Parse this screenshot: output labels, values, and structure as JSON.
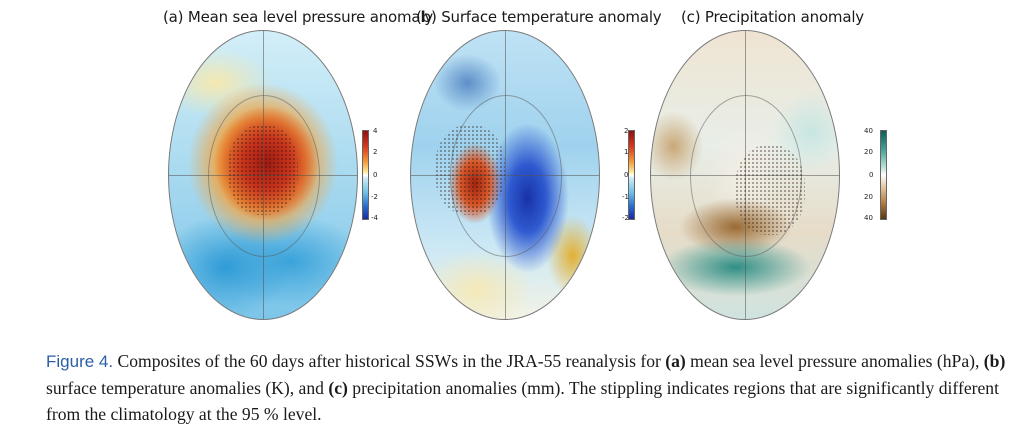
{
  "panels": [
    {
      "title": "(a) Mean sea level pressure anomaly",
      "colorbar": {
        "colors": [
          "#8e1010",
          "#f4a23e",
          "#ffffff",
          "#6fc0e8",
          "#1a2aa0"
        ],
        "ticks": [
          "4",
          "2",
          "0",
          "-2",
          "-4"
        ]
      }
    },
    {
      "title": "(b) Surface temperature anomaly",
      "colorbar": {
        "colors": [
          "#8e1010",
          "#f4a23e",
          "#ffffff",
          "#6fc0e8",
          "#1a2aa0"
        ],
        "ticks": [
          "2",
          "1",
          "0",
          "-1",
          "-2"
        ]
      }
    },
    {
      "title": "(c) Precipitation anomaly",
      "colorbar": {
        "colors": [
          "#0f5d5a",
          "#bfe3dd",
          "#ffffff",
          "#ead7b8",
          "#5a3510"
        ],
        "ticks": [
          "40",
          "20",
          "0",
          "20",
          "40"
        ]
      }
    }
  ],
  "caption": {
    "label": "Figure 4.",
    "part1": " Composites of the 60 days after historical SSWs in the JRA-55 reanalysis for ",
    "a_marker": "(a)",
    "part2": " mean sea level pressure anomalies (hPa), ",
    "b_marker": "(b)",
    "part3": " surface temperature anomalies (K), and ",
    "c_marker": "(c)",
    "part4": " precipitation anomalies (mm). The stippling indicates regions that are significantly different from the climatology at the 95 % level."
  }
}
